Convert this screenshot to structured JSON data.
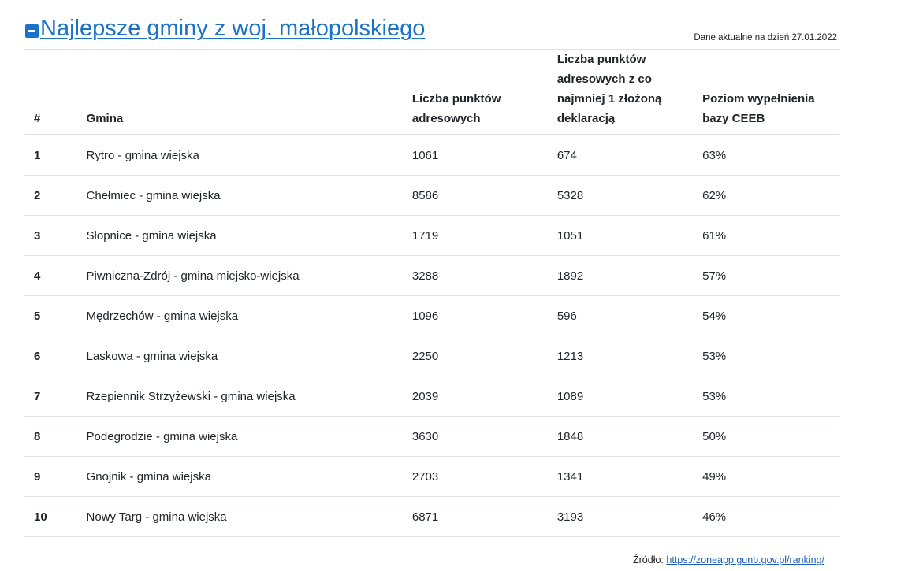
{
  "header": {
    "title": "Najlepsze gminy z woj. małopolskiego",
    "date_note": "Dane aktualne na dzień 27.01.2022"
  },
  "table": {
    "columns": [
      "#",
      "Gmina",
      "Liczba punktów adresowych",
      "Liczba punktów adresowych z co najmniej 1 złożoną deklaracją",
      "Poziom wypełnienia bazy CEEB"
    ],
    "rows": [
      {
        "rank": "1",
        "gmina": "Rytro - gmina wiejska",
        "punkty": "1061",
        "deklaracje": "674",
        "poziom": "63%"
      },
      {
        "rank": "2",
        "gmina": "Chełmiec - gmina wiejska",
        "punkty": "8586",
        "deklaracje": "5328",
        "poziom": "62%"
      },
      {
        "rank": "3",
        "gmina": "Słopnice - gmina wiejska",
        "punkty": "1719",
        "deklaracje": "1051",
        "poziom": "61%"
      },
      {
        "rank": "4",
        "gmina": "Piwniczna-Zdrój - gmina miejsko-wiejska",
        "punkty": "3288",
        "deklaracje": "1892",
        "poziom": "57%"
      },
      {
        "rank": "5",
        "gmina": "Mędrzechów - gmina wiejska",
        "punkty": "1096",
        "deklaracje": "596",
        "poziom": "54%"
      },
      {
        "rank": "6",
        "gmina": "Laskowa - gmina wiejska",
        "punkty": "2250",
        "deklaracje": "1213",
        "poziom": "53%"
      },
      {
        "rank": "7",
        "gmina": "Rzepiennik Strzyżewski - gmina wiejska",
        "punkty": "2039",
        "deklaracje": "1089",
        "poziom": "53%"
      },
      {
        "rank": "8",
        "gmina": "Podegrodzie - gmina wiejska",
        "punkty": "3630",
        "deklaracje": "1848",
        "poziom": "50%"
      },
      {
        "rank": "9",
        "gmina": "Gnojnik - gmina wiejska",
        "punkty": "2703",
        "deklaracje": "1341",
        "poziom": "49%"
      },
      {
        "rank": "10",
        "gmina": "Nowy Targ - gmina wiejska",
        "punkty": "6871",
        "deklaracje": "3193",
        "poziom": "46%"
      }
    ]
  },
  "footer": {
    "source_label": "Źródło:",
    "source_link": "https://zoneapp.gunb.gov.pl/ranking/"
  }
}
